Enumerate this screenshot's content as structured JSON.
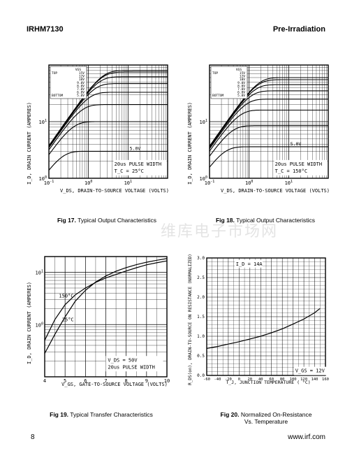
{
  "header": {
    "part_number": "IRHM7130",
    "section": "Pre-Irradiation"
  },
  "footer": {
    "page": "8",
    "url": "www.irf.com"
  },
  "watermark": {
    "text": "维库电子市场网"
  },
  "captions": [
    {
      "num": "Fig 17.",
      "text": "Typical Output Characteristics",
      "text2": ""
    },
    {
      "num": "Fig 18.",
      "text": "Typical Output Characteristics",
      "text2": ""
    },
    {
      "num": "Fig 19.",
      "text": "Typical Transfer Characteristics",
      "text2": ""
    },
    {
      "num": "Fig 20.",
      "text": "Normalized On-Resistance",
      "text2": "Vs. Temperature"
    }
  ],
  "chart_data": [
    {
      "type": "line",
      "log_x": true,
      "log_y": true,
      "xlim": [
        0.1,
        100
      ],
      "ylim": [
        1,
        100
      ],
      "xticks": [
        {
          "v": 0.1,
          "base": "10",
          "exp": "-1"
        },
        {
          "v": 1,
          "base": "10",
          "exp": "0"
        },
        {
          "v": 10,
          "base": "10",
          "exp": "1"
        }
      ],
      "yticks": [
        {
          "v": 1,
          "base": "10",
          "exp": "0"
        },
        {
          "v": 10,
          "base": "10",
          "exp": "1"
        }
      ],
      "ylabel": "I_D, DRAIN CURRENT (AMPERES)",
      "xlabel": "V_DS, DRAIN-TO-SOURCE VOLTAGE (VOLTS)",
      "legend": {
        "head": "VGS",
        "labels": [
          "TOP",
          "",
          "",
          "",
          "",
          "",
          "",
          "BOTTOM"
        ],
        "values": [
          "15V",
          "12V",
          "10V",
          "9.0V",
          "8.0V",
          "7.0V",
          "6.0V",
          "5.0V"
        ]
      },
      "notes": [
        "20us PULSE WIDTH",
        "T_C = 25°C"
      ],
      "curve_label": "5.0V",
      "series": [
        {
          "name": "15V",
          "values": [
            80
          ]
        },
        {
          "name": "12V",
          "values": [
            75
          ]
        },
        {
          "name": "10V",
          "values": [
            62
          ]
        },
        {
          "name": "9.0V",
          "values": [
            47
          ]
        },
        {
          "name": "8.0V",
          "values": [
            33
          ]
        },
        {
          "name": "7.0V",
          "values": [
            20
          ]
        },
        {
          "name": "6.0V",
          "values": [
            10
          ]
        },
        {
          "name": "5.0V",
          "values": [
            3
          ]
        }
      ]
    },
    {
      "type": "line",
      "log_x": true,
      "log_y": true,
      "xlim": [
        0.1,
        100
      ],
      "ylim": [
        1,
        100
      ],
      "xticks": [
        {
          "v": 0.1,
          "base": "10",
          "exp": "-1"
        },
        {
          "v": 1,
          "base": "10",
          "exp": "0"
        },
        {
          "v": 10,
          "base": "10",
          "exp": "1"
        }
      ],
      "yticks": [
        {
          "v": 1,
          "base": "10",
          "exp": "0"
        },
        {
          "v": 10,
          "base": "10",
          "exp": "1"
        }
      ],
      "ylabel": "I_D, DRAIN CURRENT (AMPERES)",
      "xlabel": "V_DS, DRAIN-TO-SOURCE VOLTAGE (VOLTS)",
      "legend": {
        "head": "VGS",
        "labels": [
          "TOP",
          "",
          "",
          "",
          "",
          "",
          "",
          "BOTTOM"
        ],
        "values": [
          "15V",
          "12V",
          "10V",
          "9.0V",
          "8.0V",
          "7.0V",
          "6.0V",
          "5.0V"
        ]
      },
      "notes": [
        "20us PULSE WIDTH",
        "T_C = 150°C"
      ],
      "curve_label": "5.0V",
      "series": [
        {
          "name": "15V",
          "values": [
            60
          ]
        },
        {
          "name": "12V",
          "values": [
            55
          ]
        },
        {
          "name": "10V",
          "values": [
            45
          ]
        },
        {
          "name": "9.0V",
          "values": [
            35
          ]
        },
        {
          "name": "8.0V",
          "values": [
            25
          ]
        },
        {
          "name": "7.0V",
          "values": [
            16
          ]
        },
        {
          "name": "6.0V",
          "values": [
            8.5
          ]
        },
        {
          "name": "5.0V",
          "values": [
            3.6
          ]
        }
      ]
    },
    {
      "type": "line",
      "log_y": true,
      "xlim": [
        4,
        10
      ],
      "ylim": [
        0.1,
        20
      ],
      "xticks": [
        {
          "v": 4,
          "label": "4"
        },
        {
          "v": 5,
          "label": "5"
        },
        {
          "v": 6,
          "label": "6"
        },
        {
          "v": 7,
          "label": "7"
        },
        {
          "v": 8,
          "label": "8"
        },
        {
          "v": 9,
          "label": "9"
        },
        {
          "v": 10,
          "label": "10"
        }
      ],
      "yticks": [
        {
          "v": 1,
          "base": "10",
          "exp": "0"
        },
        {
          "v": 10,
          "base": "10",
          "exp": "1"
        }
      ],
      "ylabel": "I_D, DRAIN CURRENT (AMPERES)",
      "xlabel": "V_GS, GATE-TO-SOURCE VOLTAGE (VOLTS)",
      "notes": [
        "V_DS = 50V",
        "20us PULSE WIDTH"
      ],
      "series": [
        {
          "name": "150°C",
          "x": [
            4,
            4.5,
            5,
            5.5,
            6,
            6.5,
            7,
            7.5,
            8,
            8.5,
            9,
            9.5,
            10
          ],
          "values": [
            0.5,
            1.25,
            2.4,
            3.7,
            5,
            6.4,
            7.8,
            9.1,
            10.6,
            12.2,
            13.9,
            15.2,
            16.5
          ]
        },
        {
          "name": "25°C",
          "x": [
            4,
            4.5,
            5,
            5.5,
            6,
            6.5,
            7,
            7.5,
            8,
            8.5,
            9,
            9.5,
            10
          ],
          "values": [
            0.28,
            0.65,
            1.4,
            2.8,
            4.5,
            6.5,
            8.5,
            10.5,
            12.3,
            14,
            15.6,
            17,
            18.3
          ]
        }
      ]
    },
    {
      "type": "line",
      "xlim": [
        -60,
        160
      ],
      "ylim": [
        0,
        3.0
      ],
      "xticks": [
        -60,
        -40,
        -20,
        0,
        20,
        40,
        60,
        80,
        100,
        120,
        140,
        160
      ],
      "yticks": [
        "0.0",
        "0.5",
        "1.0",
        "1.5",
        "2.0",
        "2.5",
        "3.0"
      ],
      "ylabel": "R_DS(on), DRAIN-TO-SOURCE ON RESISTANCE (NORMALIZED)",
      "xlabel": "T_J, JUNCTION TEMPERATURE ( °C)",
      "notes": [
        "I_D = 14A",
        "V_GS = 12V"
      ],
      "series": [
        {
          "name": "",
          "x": [
            -60,
            -40,
            -20,
            0,
            20,
            40,
            60,
            80,
            100,
            120,
            140,
            150
          ],
          "values": [
            0.69,
            0.74,
            0.8,
            0.86,
            0.93,
            1.0,
            1.09,
            1.19,
            1.31,
            1.44,
            1.6,
            1.71
          ]
        }
      ]
    }
  ]
}
